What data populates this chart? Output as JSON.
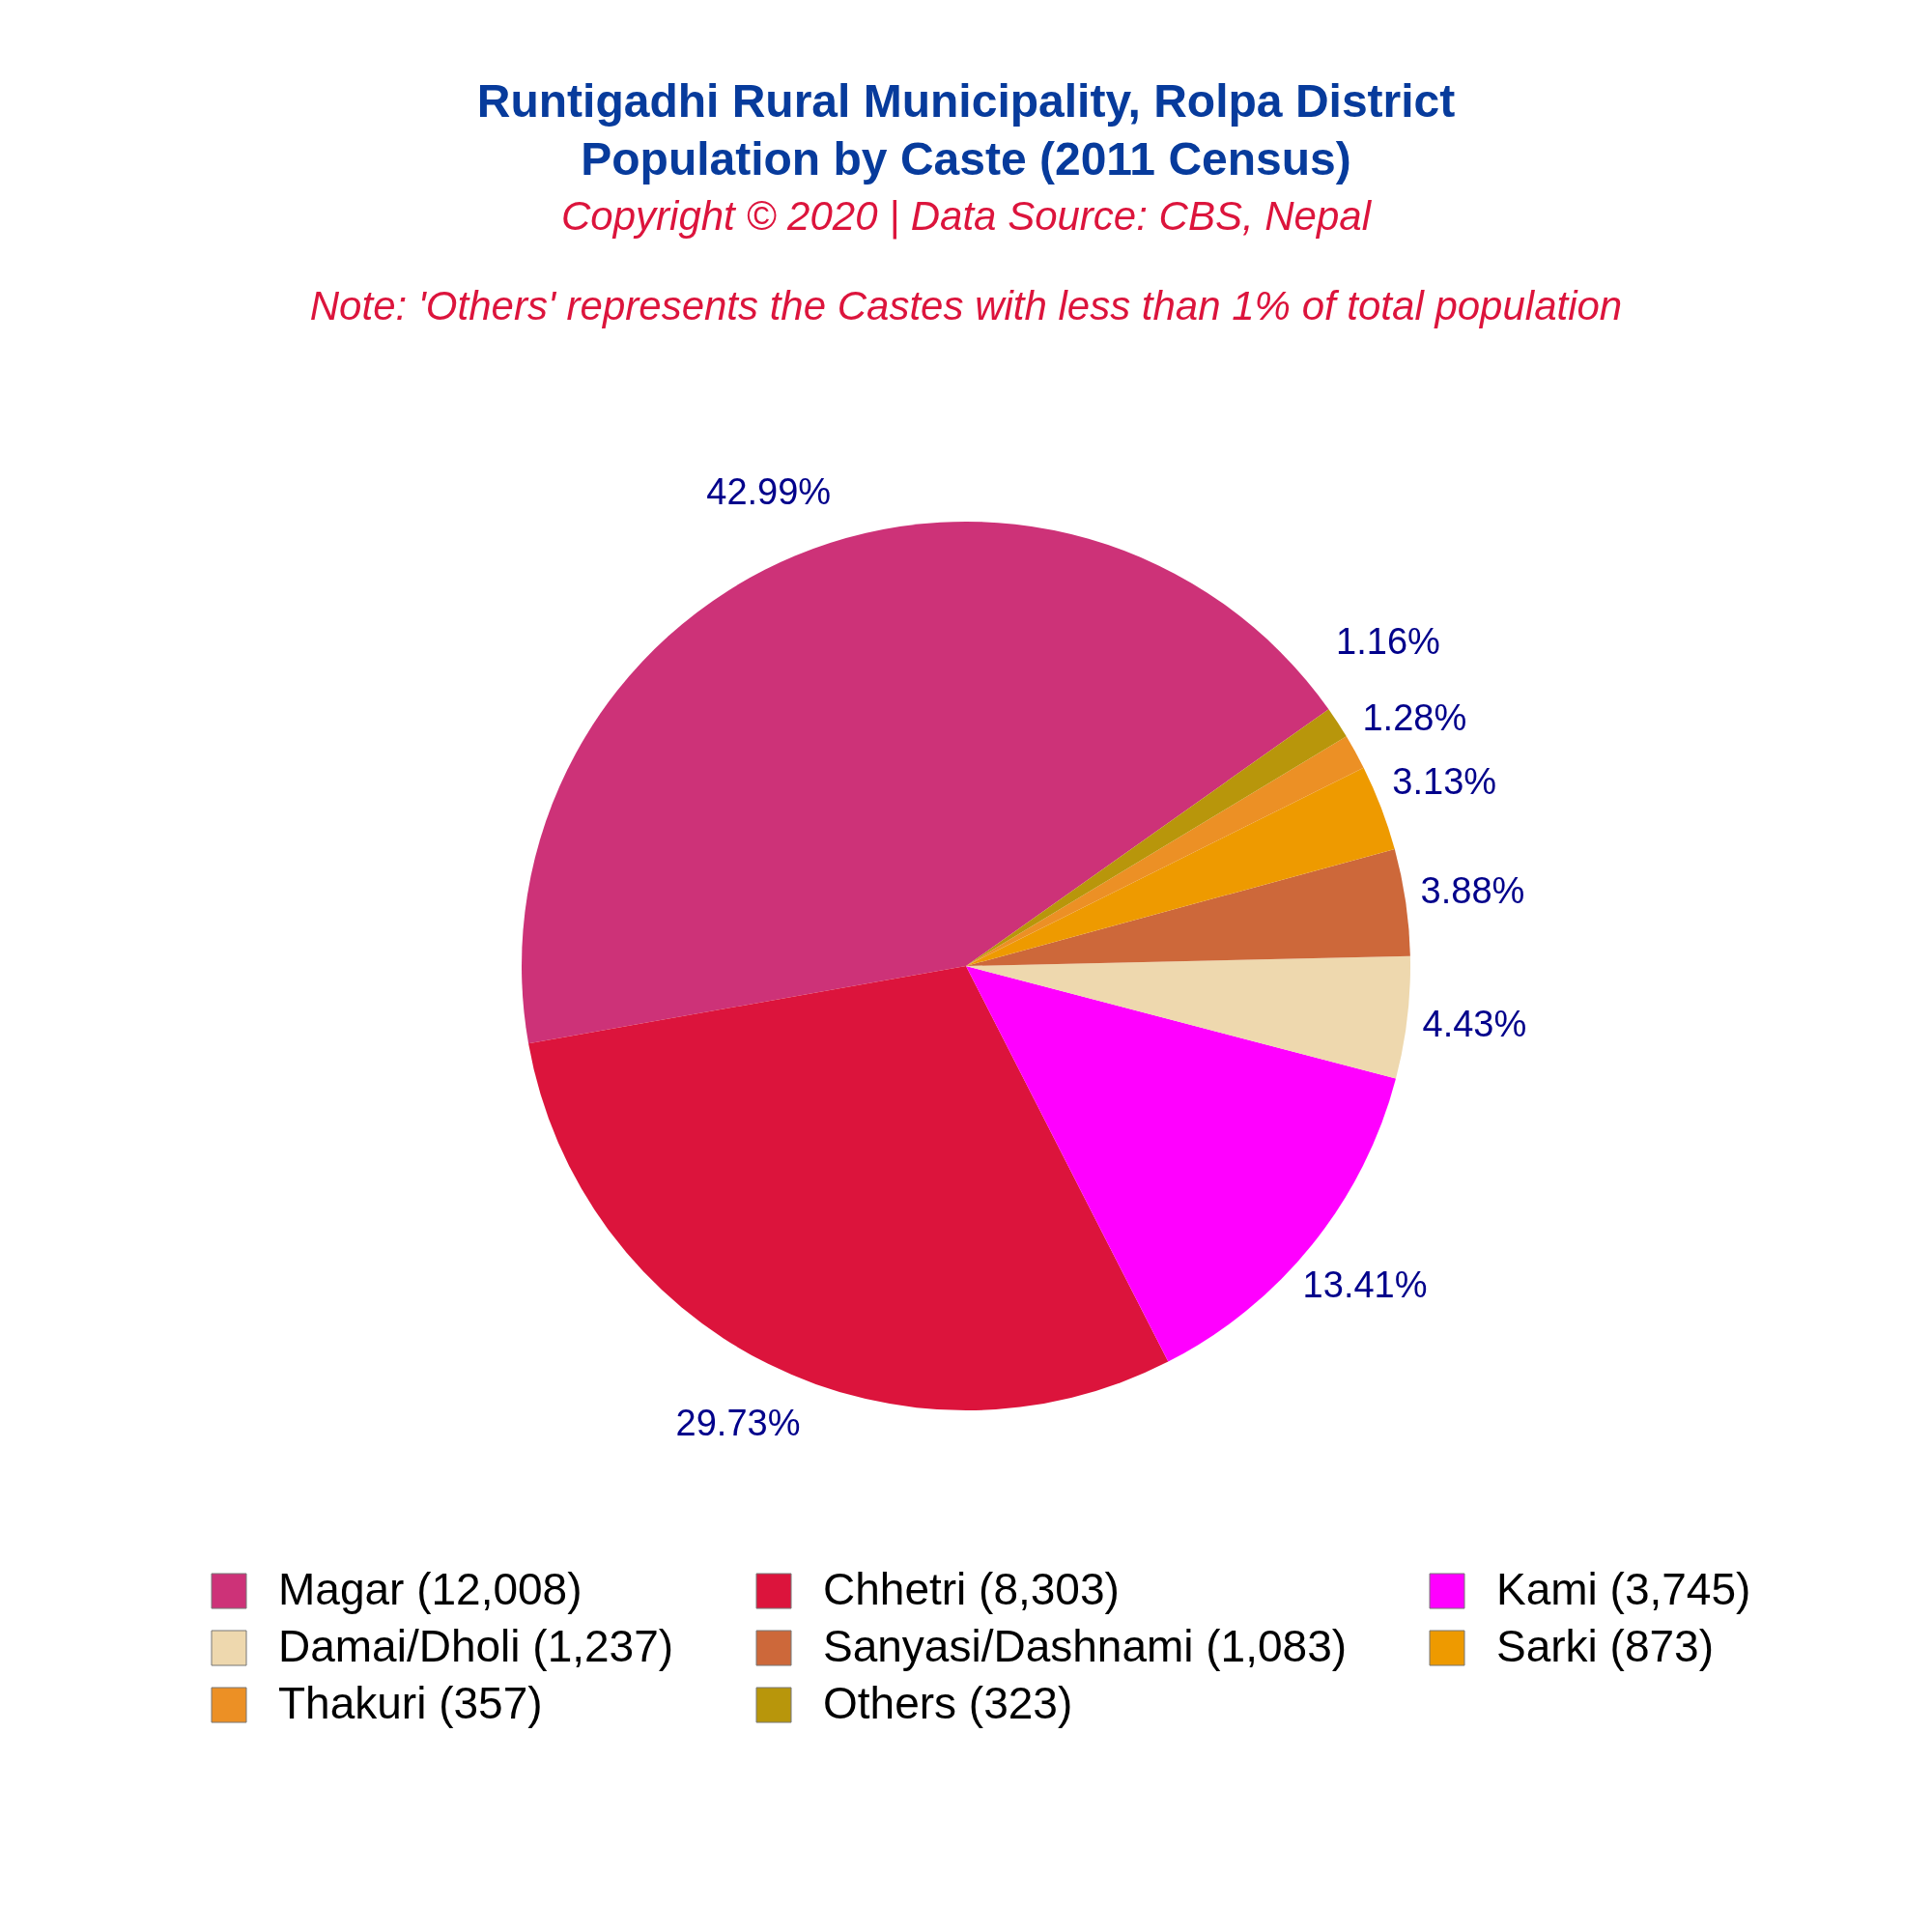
{
  "chart_data": {
    "type": "pie",
    "title": "Runtigadhi Rural Municipality, Rolpa District\nPopulation by Caste (2011 Census)",
    "subtitle": "Copyright © 2020 | Data Source: CBS, Nepal",
    "annotations": [
      "Note: 'Others' represents the Castes with less than 1% of total population"
    ],
    "categories": [
      "Magar (12,008)",
      "Chhetri (8,303)",
      "Kami (3,745)",
      "Damai/Dholi (1,237)",
      "Sanyasi/Dashnami (1,083)",
      "Sarki (873)",
      "Thakuri (357)",
      "Others (323)"
    ],
    "values": [
      42.99,
      29.73,
      13.41,
      4.43,
      3.88,
      3.13,
      1.28,
      1.16
    ],
    "colors": [
      "#cd3278",
      "#dc143c",
      "#ff00ff",
      "#eed8ae",
      "#cd683a",
      "#ee9a00",
      "#ec9025",
      "#b8960b"
    ],
    "value_labels": [
      "42.99%",
      "29.73%",
      "13.41%",
      "4.43%",
      "3.88%",
      "3.13%",
      "1.28%",
      "1.16%"
    ],
    "legend": "bottom"
  }
}
